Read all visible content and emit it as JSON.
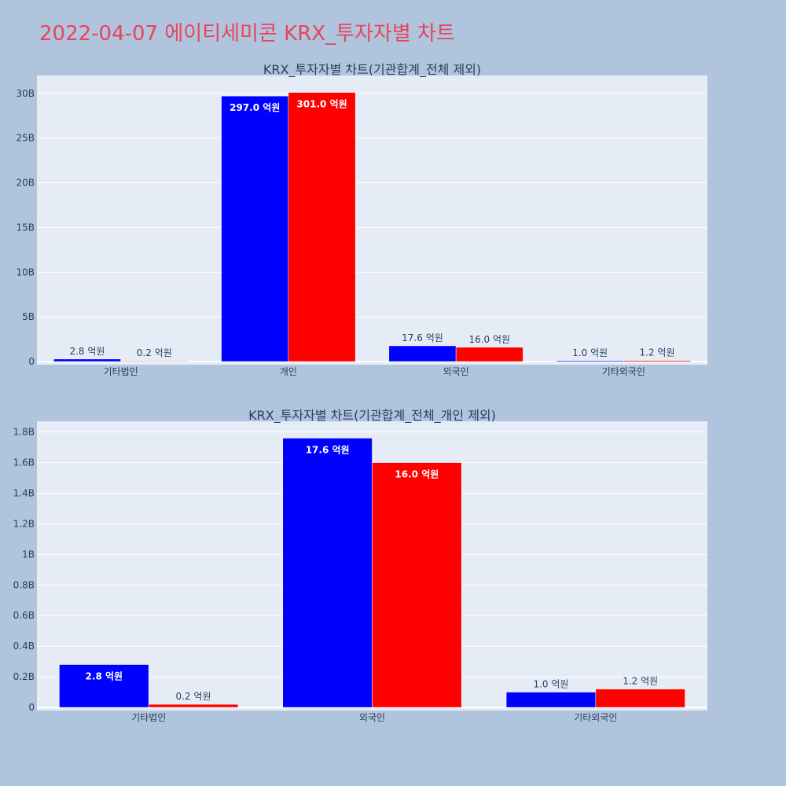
{
  "page": {
    "title": "2022-04-07 에이티세미콘 KRX_투자자별 차트"
  },
  "colors": {
    "background": "#b0c4de",
    "plot_background": "#e5ecf6",
    "title": "#e8455c",
    "series_a": "#0000ff",
    "series_b": "#ff0000",
    "text": "#2a3f5f"
  },
  "chart_data": [
    {
      "type": "bar",
      "title": "KRX_투자자별 차트(기관합계_전체 제외)",
      "categories": [
        "기타법인",
        "개인",
        "외국인",
        "기타외국인"
      ],
      "series": [
        {
          "color": "#0000ff",
          "values": [
            280000000,
            29700000000,
            1760000000,
            100000000
          ],
          "labels": [
            "2.8 억원",
            "297.0 억원",
            "17.6 억원",
            "1.0 억원"
          ]
        },
        {
          "color": "#ff0000",
          "values": [
            20000000,
            30100000000,
            1600000000,
            120000000
          ],
          "labels": [
            "0.2 억원",
            "301.0 억원",
            "16.0 억원",
            "1.2 억원"
          ]
        }
      ],
      "ylim": [
        0,
        32000000000
      ],
      "yticks": [
        0,
        5000000000,
        10000000000,
        15000000000,
        20000000000,
        25000000000,
        30000000000
      ],
      "ytick_labels": [
        "0",
        "5B",
        "10B",
        "15B",
        "20B",
        "25B",
        "30B"
      ],
      "grid": true
    },
    {
      "type": "bar",
      "title": "KRX_투자자별 차트(기관합계_전체_개인 제외)",
      "categories": [
        "기타법인",
        "외국인",
        "기타외국인"
      ],
      "series": [
        {
          "color": "#0000ff",
          "values": [
            280000000,
            1760000000,
            100000000
          ],
          "labels": [
            "2.8 억원",
            "17.6 억원",
            "1.0 억원"
          ]
        },
        {
          "color": "#ff0000",
          "values": [
            20000000,
            1600000000,
            120000000
          ],
          "labels": [
            "0.2 억원",
            "16.0 억원",
            "1.2 억원"
          ]
        }
      ],
      "ylim": [
        0,
        1870000000
      ],
      "yticks": [
        0,
        200000000,
        400000000,
        600000000,
        800000000,
        1000000000,
        1200000000,
        1400000000,
        1600000000,
        1800000000
      ],
      "ytick_labels": [
        "0",
        "0.2B",
        "0.4B",
        "0.6B",
        "0.8B",
        "1B",
        "1.2B",
        "1.4B",
        "1.6B",
        "1.8B"
      ],
      "grid": true
    }
  ]
}
